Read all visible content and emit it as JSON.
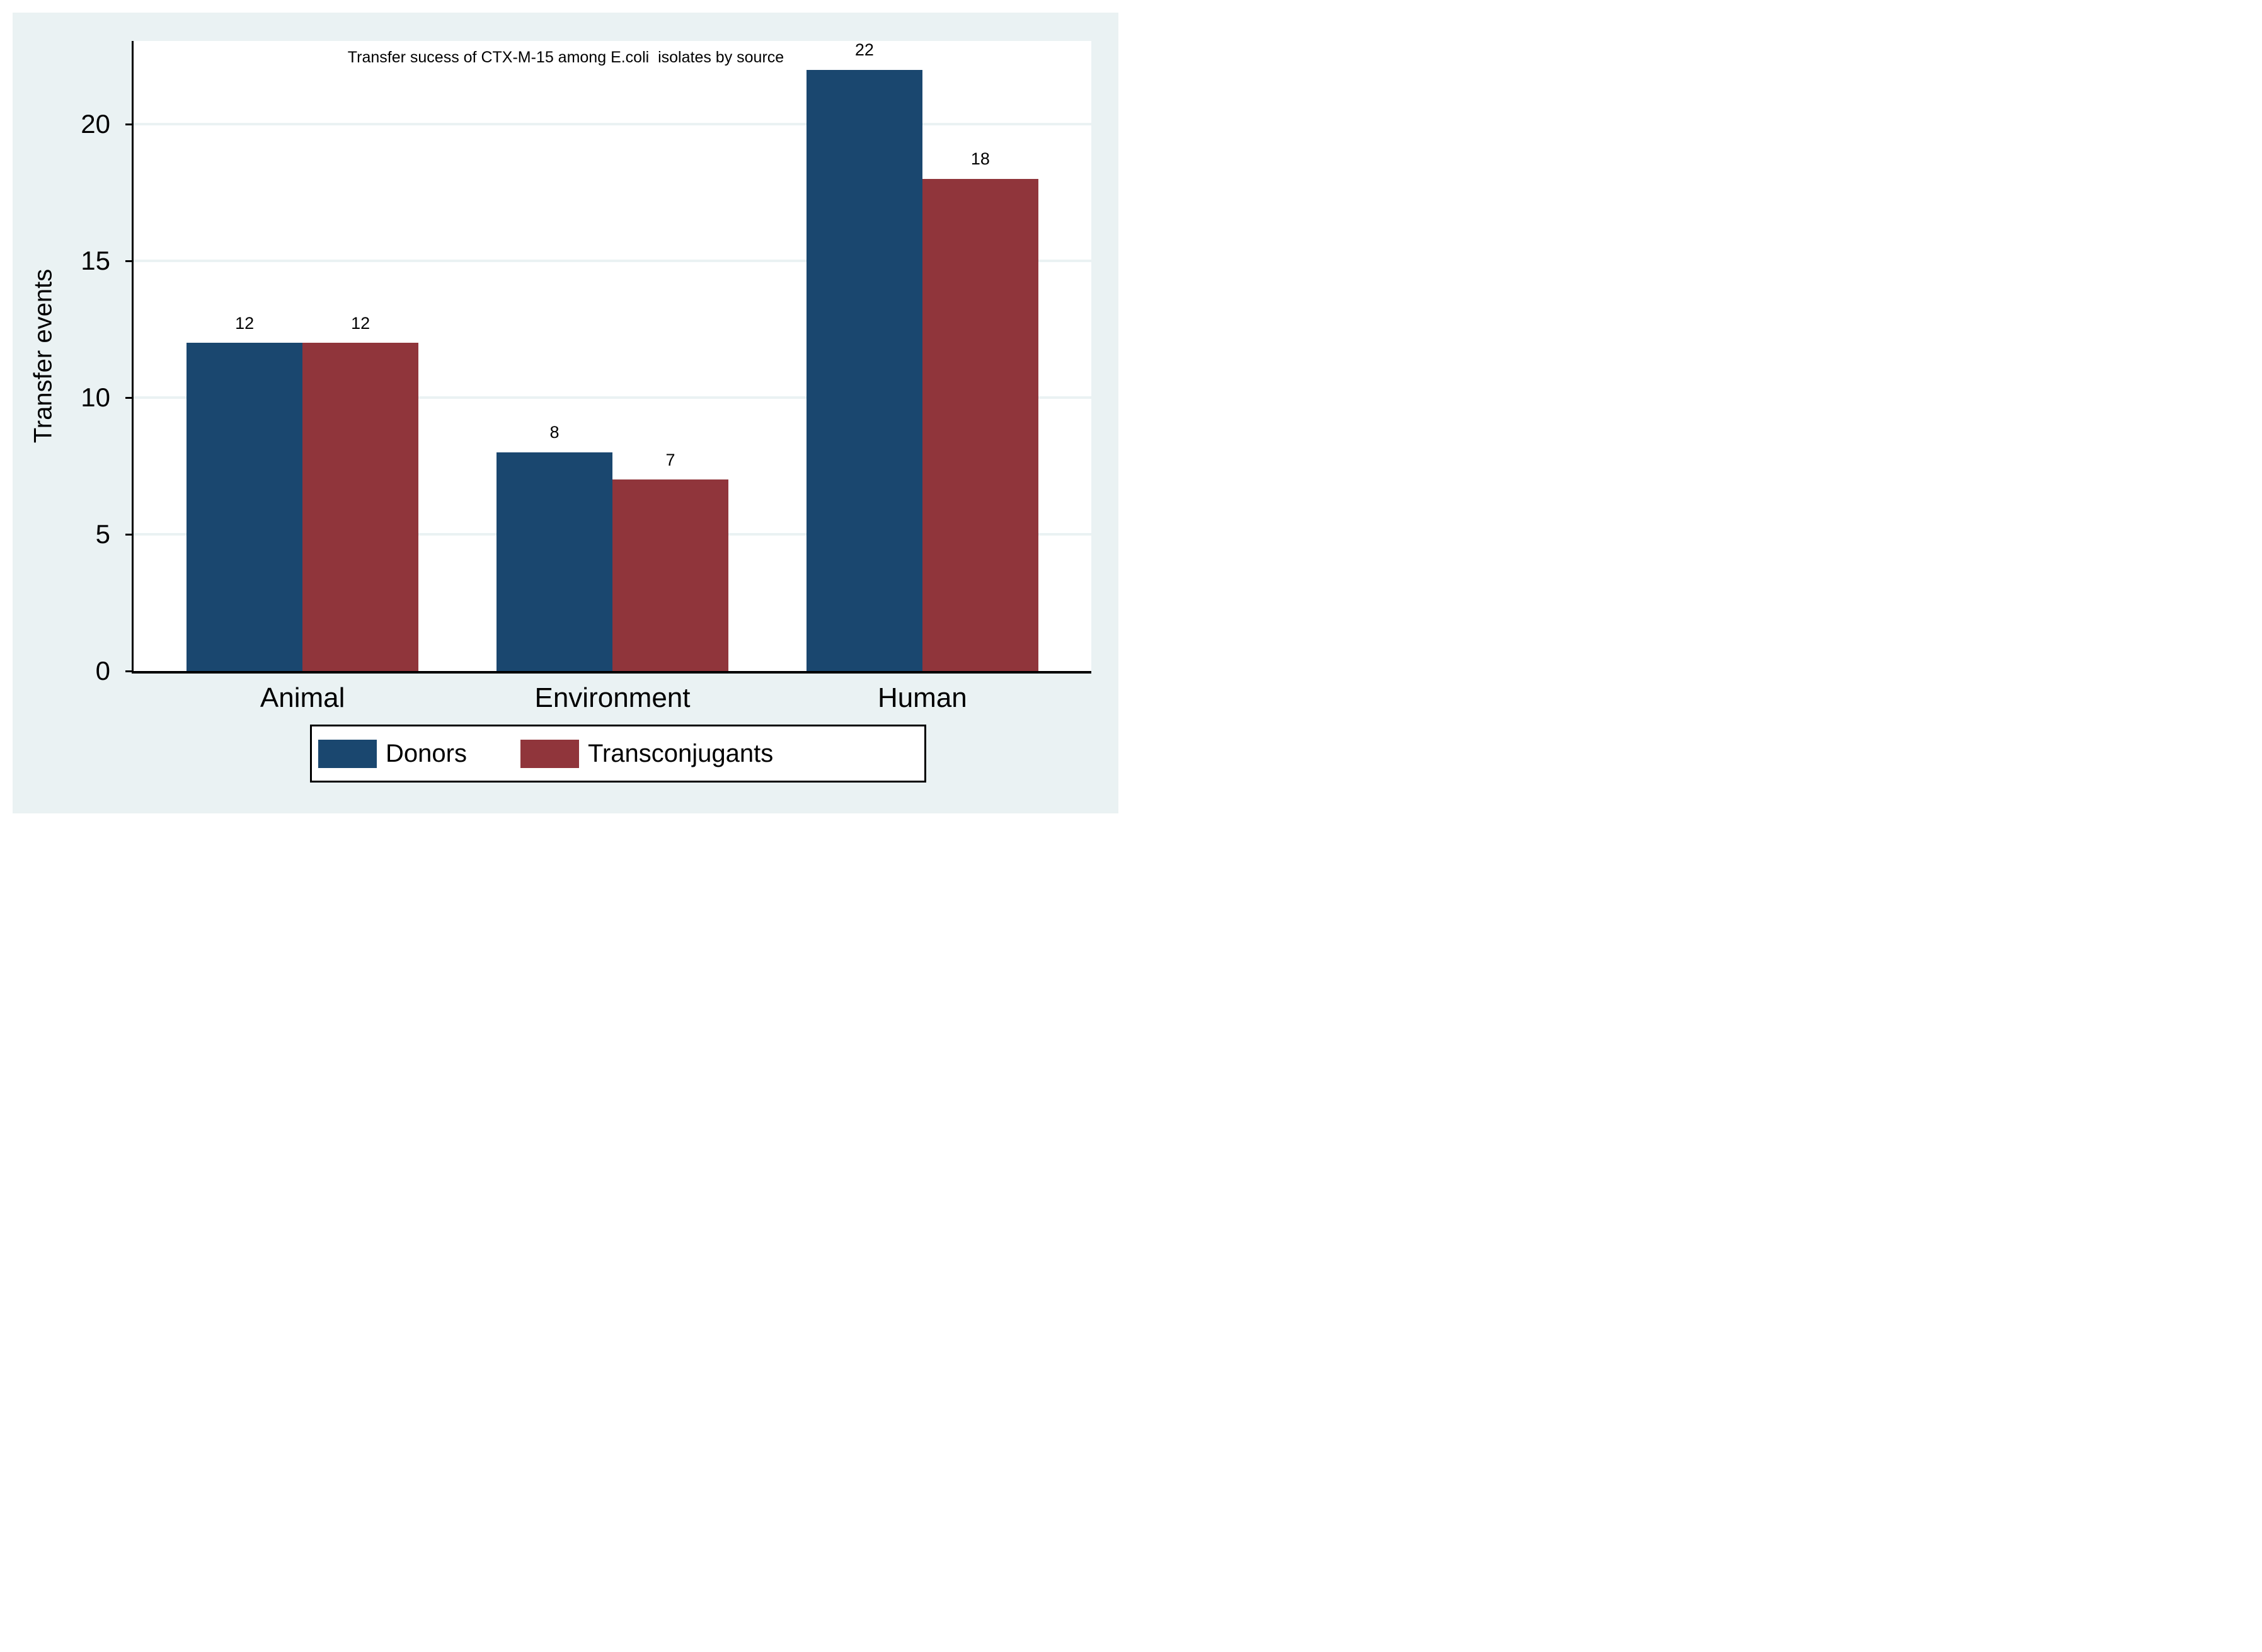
{
  "chart_data": {
    "type": "bar",
    "title": "Transfer sucess of CTX-M-15 among E.coli  isolates by source",
    "xlabel": "",
    "ylabel": "Transfer events",
    "categories": [
      "Animal",
      "Environment",
      "Human"
    ],
    "series": [
      {
        "name": "Donors",
        "color": "#1a476f",
        "values": [
          12,
          8,
          22
        ]
      },
      {
        "name": "Transconjugants",
        "color": "#90353b",
        "values": [
          12,
          7,
          18
        ]
      }
    ],
    "bar_value_labels": [
      [
        12,
        12
      ],
      [
        8,
        7
      ],
      [
        22,
        18
      ]
    ],
    "yticks": [
      0,
      5,
      10,
      15,
      20
    ],
    "ylim": [
      0,
      23.05
    ],
    "grid": true,
    "legend_position": "bottom"
  },
  "colors": {
    "background": "#eaf2f3",
    "plot_background": "#ffffff",
    "gridline": "#eaf2f3",
    "axis": "#000000",
    "text": "#000000",
    "donors": "#1a476f",
    "transconjugants": "#90353b",
    "legend_background": "#ffffff",
    "legend_border": "#000000"
  }
}
